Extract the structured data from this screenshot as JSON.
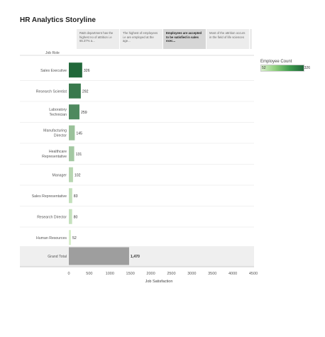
{
  "page": {
    "title": "HR Analytics Storyline"
  },
  "story_tabs": [
    {
      "text": "R&D department has the highest no of attrition i.e 65.37% a...",
      "active": false
    },
    {
      "text": "The highest of employees i.e are employed at the age...",
      "active": false
    },
    {
      "text": "Employees are accepted to be satisfied in sales exec...",
      "active": true
    },
    {
      "text": "Most of the attrition occurs in the field of life sciences",
      "active": false
    }
  ],
  "legend": {
    "title": "Employee Count",
    "min": "52",
    "max": "326",
    "colors": [
      "#d8efcc",
      "#21683a"
    ]
  },
  "chart_data": {
    "type": "bar",
    "orientation": "horizontal",
    "row_header": "Job Role",
    "categories": [
      "Sales Executive",
      "Research Scientist",
      "Laboratory Technician",
      "Manufacturing Director",
      "Healthcare Representative",
      "Manager",
      "Sales Representative",
      "Research Director",
      "Human Resources",
      "Grand Total"
    ],
    "values": [
      326,
      292,
      259,
      145,
      131,
      102,
      83,
      80,
      52,
      1470
    ],
    "value_labels": [
      "326",
      "292",
      "259",
      "145",
      "131",
      "102",
      "83",
      "80",
      "52",
      "1,470"
    ],
    "xlabel": "Job Satisfaction",
    "xlim": [
      0,
      4500
    ],
    "xticks": [
      "0",
      "500",
      "1000",
      "1500",
      "2000",
      "2500",
      "3000",
      "3500",
      "4000",
      "4500"
    ],
    "color_scale": {
      "min_value": 52,
      "max_value": 326,
      "min_color": "#d8efcc",
      "max_color": "#21683a"
    },
    "total_color": "#9e9e9e",
    "grid": false,
    "legend_position": "top-right"
  }
}
